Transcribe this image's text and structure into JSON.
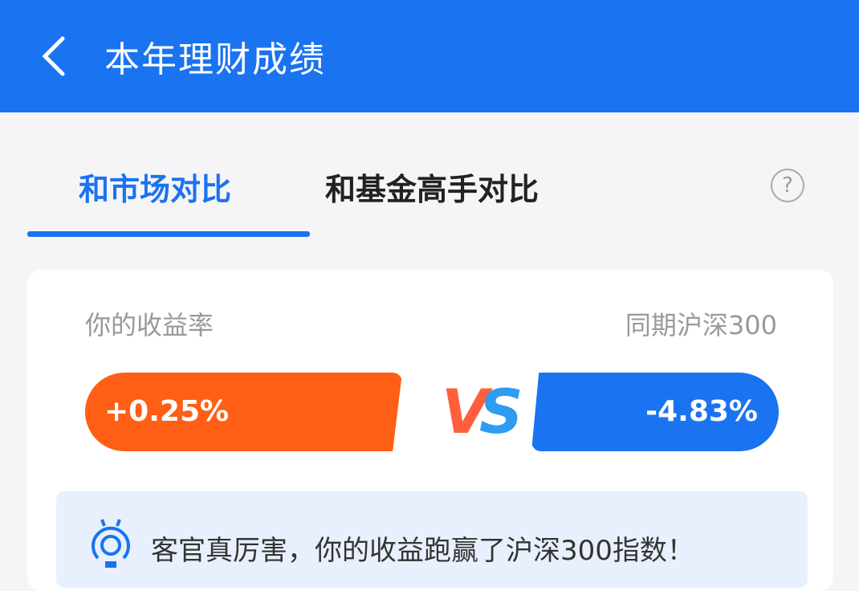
{
  "header": {
    "title": "本年理财成绩"
  },
  "tabs": [
    {
      "label": "和市场对比",
      "active": true
    },
    {
      "label": "和基金高手对比",
      "active": false
    }
  ],
  "help": "?",
  "comparison": {
    "your_label": "你的收益率",
    "benchmark_label": "同期沪深300",
    "your_value": "+0.25%",
    "vs": "VS",
    "benchmark_value": "-4.83%"
  },
  "message": "客官真厉害，你的收益跑赢了沪深300指数！",
  "colors": {
    "primary": "#1a73f0",
    "orange": "#ff5f14"
  }
}
